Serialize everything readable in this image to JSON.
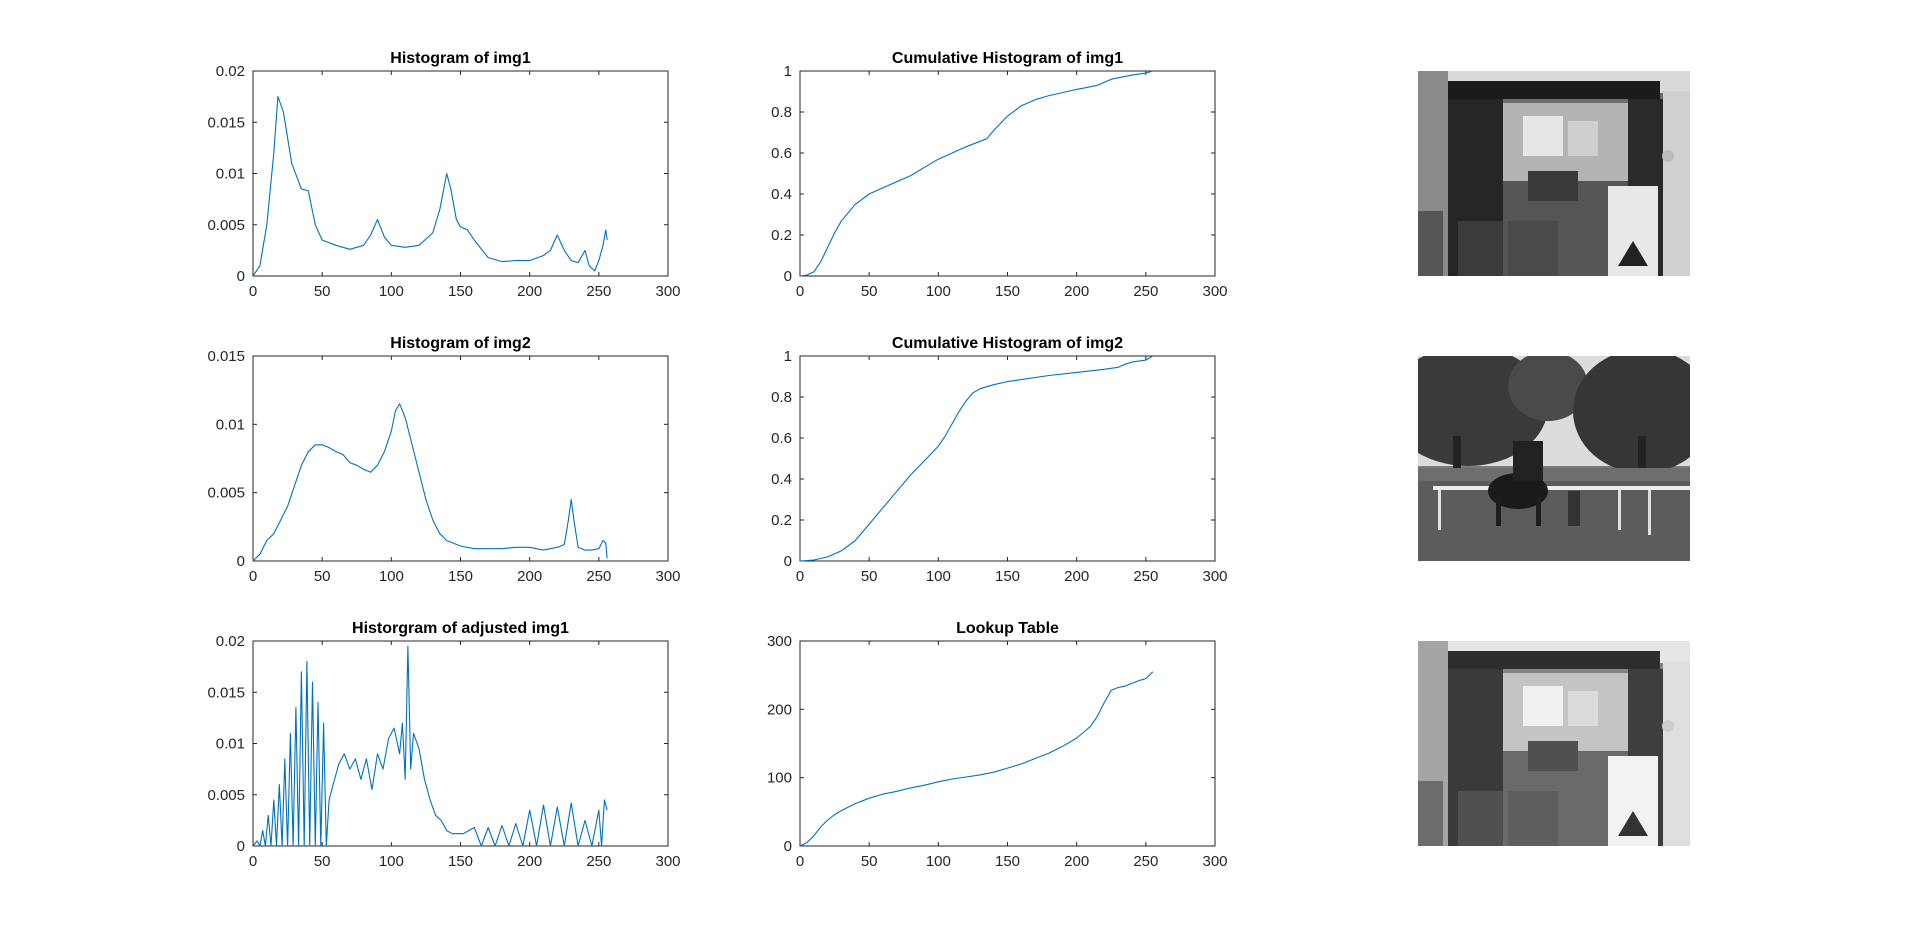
{
  "figure": {
    "background": "#ffffff",
    "line_color": "#0072BD",
    "axis_color": "#262626"
  },
  "chart_data": [
    {
      "id": "hist-img1",
      "type": "line",
      "title": "Histogram of img1",
      "xlabel": "",
      "ylabel": "",
      "xlim": [
        0,
        300
      ],
      "ylim": [
        0,
        0.02
      ],
      "xticks": [
        0,
        50,
        100,
        150,
        200,
        250,
        300
      ],
      "yticks": [
        0,
        0.005,
        0.01,
        0.015,
        0.02
      ],
      "ytick_labels": [
        "0",
        "0.005",
        "0.01",
        "0.015",
        "0.02"
      ],
      "grid": false,
      "series": [
        {
          "x": [
            0,
            5,
            10,
            15,
            18,
            22,
            28,
            35,
            40,
            45,
            50,
            60,
            70,
            80,
            85,
            90,
            95,
            100,
            110,
            120,
            130,
            135,
            140,
            143,
            147,
            150,
            155,
            160,
            170,
            180,
            190,
            200,
            210,
            215,
            220,
            225,
            230,
            235,
            240,
            243,
            247,
            250,
            253,
            255,
            256
          ],
          "y": [
            0,
            0.001,
            0.005,
            0.012,
            0.0175,
            0.016,
            0.011,
            0.0085,
            0.0083,
            0.005,
            0.0035,
            0.003,
            0.0026,
            0.003,
            0.004,
            0.0055,
            0.0038,
            0.003,
            0.0028,
            0.003,
            0.0042,
            0.0065,
            0.01,
            0.0085,
            0.0055,
            0.0048,
            0.0045,
            0.0035,
            0.0018,
            0.0014,
            0.0015,
            0.0015,
            0.002,
            0.0025,
            0.004,
            0.0025,
            0.0015,
            0.0013,
            0.0025,
            0.001,
            0.0005,
            0.0015,
            0.003,
            0.0045,
            0.0035
          ]
        }
      ]
    },
    {
      "id": "cum-hist-img1",
      "type": "line",
      "title": "Cumulative Histogram of img1",
      "xlabel": "",
      "ylabel": "",
      "xlim": [
        0,
        300
      ],
      "ylim": [
        0,
        1
      ],
      "xticks": [
        0,
        50,
        100,
        150,
        200,
        250,
        300
      ],
      "yticks": [
        0,
        0.2,
        0.4,
        0.6,
        0.8,
        1
      ],
      "ytick_labels": [
        "0",
        "0.2",
        "0.4",
        "0.6",
        "0.8",
        "1"
      ],
      "grid": false,
      "series": [
        {
          "x": [
            0,
            5,
            10,
            15,
            20,
            25,
            30,
            40,
            50,
            60,
            80,
            90,
            100,
            120,
            135,
            140,
            150,
            160,
            170,
            180,
            200,
            215,
            225,
            240,
            250,
            255
          ],
          "y": [
            0,
            0.005,
            0.02,
            0.07,
            0.14,
            0.21,
            0.27,
            0.35,
            0.4,
            0.43,
            0.49,
            0.53,
            0.57,
            0.63,
            0.67,
            0.71,
            0.78,
            0.83,
            0.86,
            0.88,
            0.91,
            0.93,
            0.96,
            0.98,
            0.99,
            1.0
          ]
        }
      ]
    },
    {
      "id": "hist-img2",
      "type": "line",
      "title": "Histogram of img2",
      "xlabel": "",
      "ylabel": "",
      "xlim": [
        0,
        300
      ],
      "ylim": [
        0,
        0.015
      ],
      "xticks": [
        0,
        50,
        100,
        150,
        200,
        250,
        300
      ],
      "yticks": [
        0,
        0.005,
        0.01,
        0.015
      ],
      "ytick_labels": [
        "0",
        "0.005",
        "0.01",
        "0.015"
      ],
      "grid": false,
      "series": [
        {
          "x": [
            0,
            5,
            10,
            15,
            20,
            25,
            30,
            35,
            40,
            45,
            50,
            55,
            60,
            65,
            70,
            75,
            80,
            85,
            90,
            95,
            100,
            103,
            106,
            110,
            115,
            120,
            125,
            130,
            135,
            140,
            150,
            160,
            170,
            180,
            190,
            200,
            210,
            215,
            220,
            225,
            228,
            230,
            232,
            235,
            240,
            245,
            250,
            253,
            255,
            256
          ],
          "y": [
            0,
            0.0005,
            0.0015,
            0.002,
            0.003,
            0.004,
            0.0055,
            0.007,
            0.008,
            0.0085,
            0.0085,
            0.0083,
            0.008,
            0.0078,
            0.0072,
            0.007,
            0.0067,
            0.0065,
            0.007,
            0.008,
            0.0095,
            0.011,
            0.0115,
            0.0105,
            0.0085,
            0.0065,
            0.0045,
            0.003,
            0.002,
            0.0015,
            0.0011,
            0.0009,
            0.0009,
            0.0009,
            0.001,
            0.001,
            0.0008,
            0.0009,
            0.001,
            0.0012,
            0.003,
            0.0045,
            0.003,
            0.001,
            0.0008,
            0.0008,
            0.0009,
            0.0015,
            0.0013,
            0.0002
          ]
        }
      ]
    },
    {
      "id": "cum-hist-img2",
      "type": "line",
      "title": "Cumulative Histogram of img2",
      "xlabel": "",
      "ylabel": "",
      "xlim": [
        0,
        300
      ],
      "ylim": [
        0,
        1
      ],
      "xticks": [
        0,
        50,
        100,
        150,
        200,
        250,
        300
      ],
      "yticks": [
        0,
        0.2,
        0.4,
        0.6,
        0.8,
        1
      ],
      "ytick_labels": [
        "0",
        "0.2",
        "0.4",
        "0.6",
        "0.8",
        "1"
      ],
      "grid": false,
      "series": [
        {
          "x": [
            0,
            10,
            20,
            30,
            40,
            50,
            60,
            70,
            80,
            90,
            100,
            105,
            110,
            115,
            120,
            125,
            130,
            140,
            150,
            160,
            180,
            200,
            220,
            230,
            235,
            240,
            250,
            255
          ],
          "y": [
            0,
            0.005,
            0.02,
            0.05,
            0.1,
            0.18,
            0.26,
            0.34,
            0.42,
            0.49,
            0.56,
            0.61,
            0.67,
            0.73,
            0.78,
            0.82,
            0.84,
            0.86,
            0.875,
            0.885,
            0.905,
            0.92,
            0.935,
            0.945,
            0.96,
            0.97,
            0.98,
            1.0
          ]
        }
      ]
    },
    {
      "id": "hist-adjusted-img1",
      "type": "line",
      "title": "Historgram of adjusted img1",
      "xlabel": "",
      "ylabel": "",
      "xlim": [
        0,
        300
      ],
      "ylim": [
        0,
        0.02
      ],
      "xticks": [
        0,
        50,
        100,
        150,
        200,
        250,
        300
      ],
      "yticks": [
        0,
        0.005,
        0.01,
        0.015,
        0.02
      ],
      "ytick_labels": [
        "0",
        "0.005",
        "0.01",
        "0.015",
        "0.02"
      ],
      "grid": false,
      "series": [
        {
          "x": [
            0,
            3,
            5,
            7,
            9,
            11,
            13,
            15,
            17,
            19,
            21,
            23,
            25,
            27,
            29,
            31,
            33,
            35,
            37,
            39,
            41,
            43,
            45,
            47,
            49,
            51,
            53,
            55,
            58,
            62,
            66,
            70,
            74,
            78,
            82,
            86,
            90,
            94,
            98,
            102,
            106,
            108,
            110,
            112,
            114,
            116,
            120,
            124,
            128,
            132,
            136,
            140,
            144,
            148,
            152,
            156,
            160,
            165,
            170,
            175,
            180,
            185,
            190,
            195,
            200,
            205,
            210,
            215,
            220,
            225,
            230,
            235,
            240,
            245,
            250,
            252,
            254,
            256
          ],
          "y": [
            0,
            0.0005,
            0,
            0.0015,
            0,
            0.003,
            0,
            0.0045,
            0,
            0.006,
            0,
            0.0085,
            0,
            0.011,
            0,
            0.0135,
            0,
            0.017,
            0,
            0.018,
            0,
            0.016,
            0,
            0.014,
            0,
            0.012,
            0,
            0.0045,
            0.006,
            0.008,
            0.009,
            0.0075,
            0.0085,
            0.0065,
            0.0085,
            0.0055,
            0.009,
            0.0075,
            0.0105,
            0.0115,
            0.009,
            0.012,
            0.0065,
            0.0195,
            0.0075,
            0.011,
            0.0095,
            0.0065,
            0.0045,
            0.003,
            0.0025,
            0.0015,
            0.0012,
            0.0012,
            0.0012,
            0.0015,
            0.0018,
            0,
            0.0018,
            0,
            0.002,
            0,
            0.0022,
            0,
            0.0035,
            0,
            0.004,
            0,
            0.0038,
            0,
            0.0042,
            0,
            0.0025,
            0,
            0.0035,
            0,
            0.0045,
            0.0035
          ]
        }
      ]
    },
    {
      "id": "lookup-table",
      "type": "line",
      "title": "Lookup Table",
      "xlabel": "",
      "ylabel": "",
      "xlim": [
        0,
        300
      ],
      "ylim": [
        0,
        300
      ],
      "xticks": [
        0,
        50,
        100,
        150,
        200,
        250,
        300
      ],
      "yticks": [
        0,
        100,
        200,
        300
      ],
      "ytick_labels": [
        "0",
        "100",
        "200",
        "300"
      ],
      "grid": false,
      "series": [
        {
          "x": [
            0,
            5,
            10,
            15,
            20,
            25,
            30,
            40,
            50,
            60,
            70,
            80,
            90,
            100,
            110,
            120,
            130,
            140,
            150,
            160,
            170,
            180,
            190,
            200,
            210,
            215,
            220,
            225,
            230,
            235,
            240,
            245,
            250,
            255
          ],
          "y": [
            0,
            5,
            15,
            28,
            38,
            46,
            52,
            62,
            70,
            76,
            80,
            85,
            89,
            94,
            98,
            101,
            104,
            108,
            114,
            120,
            128,
            136,
            146,
            158,
            175,
            190,
            210,
            228,
            232,
            234,
            238,
            242,
            245,
            255
          ]
        }
      ]
    }
  ],
  "images": [
    {
      "id": "img1",
      "content": "grayscale indoor room photo"
    },
    {
      "id": "img2",
      "content": "grayscale outdoor photo with trees and horse"
    },
    {
      "id": "adjusted-img1",
      "content": "grayscale adjusted indoor room photo"
    }
  ]
}
